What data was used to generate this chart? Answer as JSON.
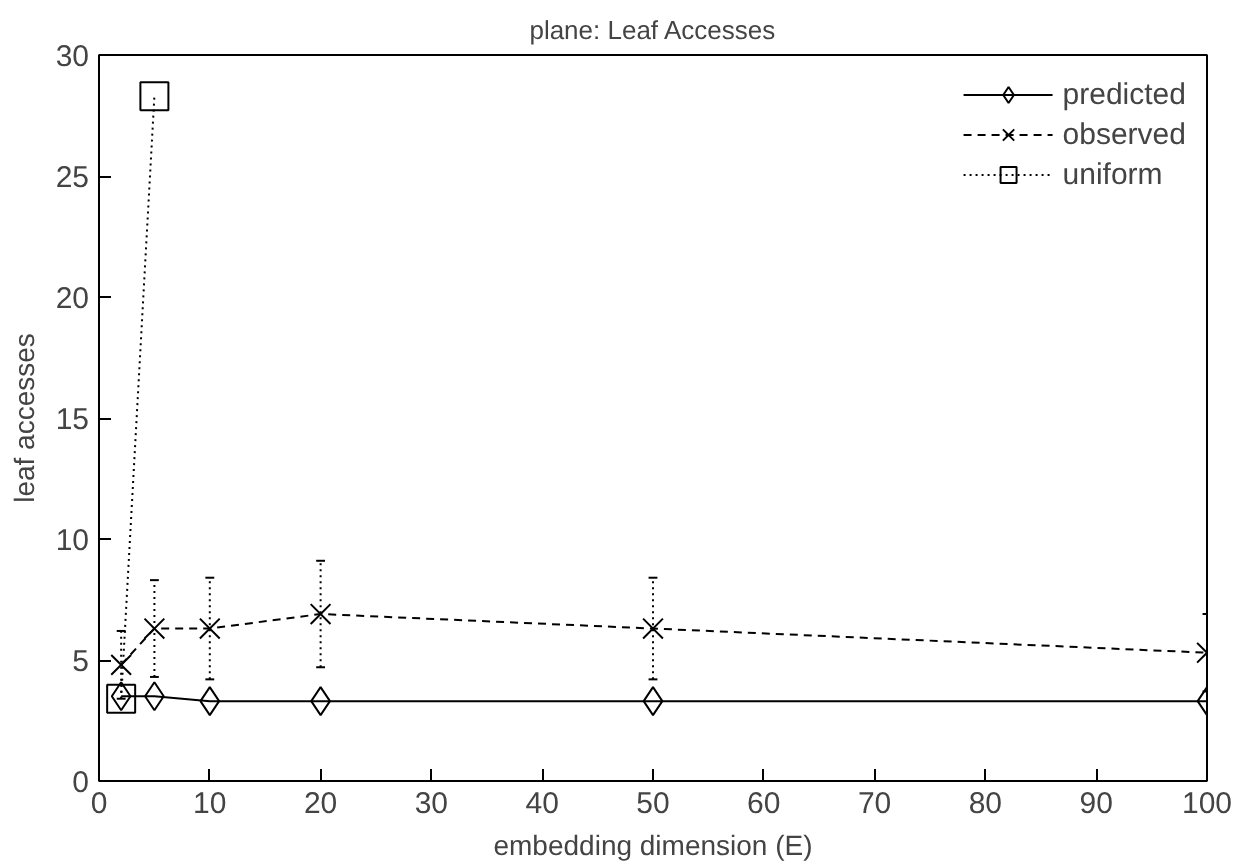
{
  "chart_data": {
    "type": "line",
    "title": "plane: Leaf Accesses",
    "xlabel": "embedding dimension (E)",
    "ylabel": "leaf accesses",
    "xlim": [
      0,
      100
    ],
    "ylim": [
      0,
      30
    ],
    "xticks": [
      0,
      10,
      20,
      30,
      40,
      50,
      60,
      70,
      80,
      90,
      100
    ],
    "yticks": [
      0,
      5,
      10,
      15,
      20,
      25,
      30
    ],
    "grid": false,
    "legend": "top right",
    "series": [
      {
        "name": "predicted",
        "color": "#000000",
        "marker": "diamond",
        "line_style": "solid",
        "x": [
          2,
          5,
          10,
          20,
          50,
          100
        ],
        "values": [
          3.5,
          3.5,
          3.3,
          3.3,
          3.3,
          3.3
        ]
      },
      {
        "name": "observed",
        "color": "#000000",
        "marker": "cross",
        "line_style": "dashed",
        "x": [
          2,
          5,
          10,
          20,
          50,
          100
        ],
        "values": [
          4.8,
          6.3,
          6.3,
          6.9,
          6.3,
          5.3
        ],
        "errors": [
          1.4,
          2.0,
          2.1,
          2.2,
          2.1,
          1.6
        ]
      },
      {
        "name": "uniform",
        "color": "#000000",
        "marker": "square",
        "line_style": "dotted",
        "x": [
          2,
          5
        ],
        "values": [
          3.4,
          28.3
        ]
      }
    ]
  }
}
